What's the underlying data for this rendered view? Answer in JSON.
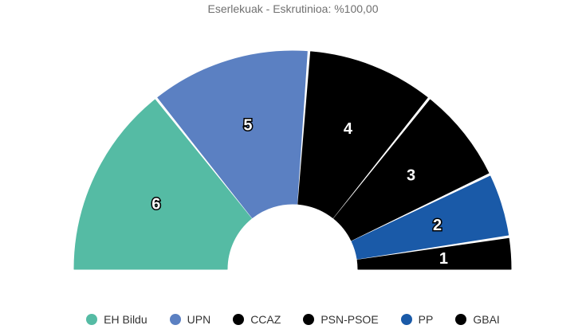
{
  "chart_data": {
    "type": "pie",
    "subtype": "parliament-semicircle",
    "title": "Eserlekuak - Eskrutinioa: %100,00",
    "series": [
      {
        "name": "EH Bildu",
        "value": 6,
        "color": "#55bba4"
      },
      {
        "name": "UPN",
        "value": 5,
        "color": "#5b80c2"
      },
      {
        "name": "CCAZ",
        "value": 4,
        "color": "#000000"
      },
      {
        "name": "PSN-PSOE",
        "value": 3,
        "color": "#000000"
      },
      {
        "name": "PP",
        "value": 2,
        "color": "#1a5aa8"
      },
      {
        "name": "GBAI",
        "value": 1,
        "color": "#000000"
      }
    ],
    "legend_position": "bottom"
  }
}
